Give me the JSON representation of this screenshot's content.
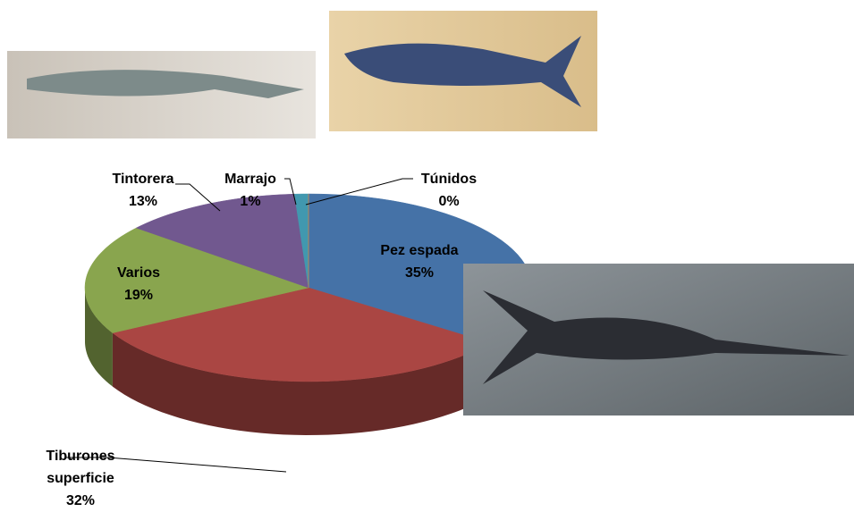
{
  "chart_data": {
    "type": "pie",
    "categories": [
      "Pez espada",
      "Tiburones superficie",
      "Varios",
      "Tintorera",
      "Marrajo",
      "Túnidos"
    ],
    "values": [
      35,
      32,
      19,
      13,
      1,
      0
    ],
    "value_labels": [
      "35%",
      "32%",
      "19%",
      "13%",
      "1%",
      "0%"
    ],
    "colors": [
      "#4572a7",
      "#aa4643",
      "#89a54e",
      "#71588f",
      "#4198af",
      "#db843d"
    ]
  }
}
